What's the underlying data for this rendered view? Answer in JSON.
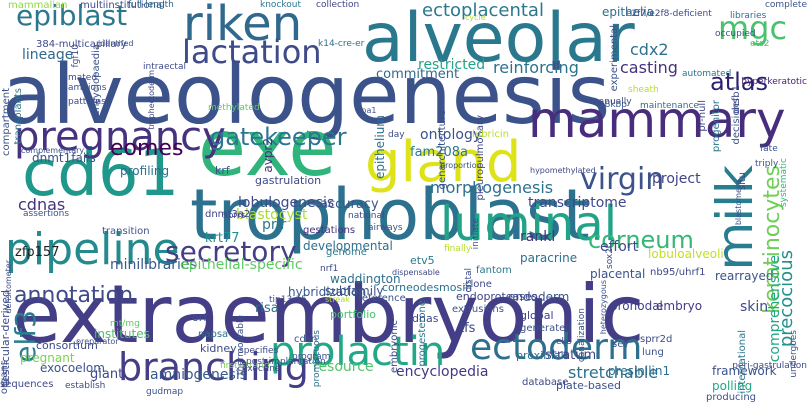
{
  "words": [
    {
      "text": "alveologenesis",
      "color": "#3b528b"
    },
    {
      "text": "extraembryonic",
      "color": "#433e85"
    },
    {
      "text": "trophoblast",
      "color": "#2c718e"
    },
    {
      "text": "exe",
      "color": "#2fb47c"
    },
    {
      "text": "alveolar",
      "color": "#2a788e"
    },
    {
      "text": "mammary",
      "color": "#472d7b"
    },
    {
      "text": "cd61",
      "color": "#1f988b"
    },
    {
      "text": "gland",
      "color": "#dde318"
    },
    {
      "text": "riken",
      "color": "#31688e"
    },
    {
      "text": "pipeline",
      "color": "#238a8d"
    },
    {
      "text": "luminal",
      "color": "#20a386"
    },
    {
      "text": "milk",
      "color": "#287d8e"
    },
    {
      "text": "pregnancy",
      "color": "#46327e"
    },
    {
      "text": "branching",
      "color": "#433e85"
    },
    {
      "text": "prolactin",
      "color": "#22a884"
    },
    {
      "text": "ectoderm",
      "color": "#2d708e"
    },
    {
      "text": "lactation",
      "color": "#3e4a89"
    },
    {
      "text": "epiblast",
      "color": "#2a788e"
    },
    {
      "text": "mgc",
      "color": "#4ac16d"
    },
    {
      "text": "virgin",
      "color": "#3b528b"
    },
    {
      "text": "secretory",
      "color": "#433e85"
    },
    {
      "text": "gatekeeper",
      "color": "#2a768e"
    },
    {
      "text": "keratinocytes",
      "color": "#70cf57"
    },
    {
      "text": "corneum",
      "color": "#35b779"
    },
    {
      "text": "annotation",
      "color": "#3e4a89"
    },
    {
      "text": "elf3",
      "color": "#287d8e"
    },
    {
      "text": "eomes",
      "color": "#440154"
    },
    {
      "text": "atlas",
      "color": "#2d1e70"
    },
    {
      "text": "precocious",
      "color": "#21918c"
    },
    {
      "text": "ectoplacental",
      "color": "#2a788e"
    },
    {
      "text": "casting",
      "color": "#46327e"
    },
    {
      "text": "lineage",
      "color": "#31688e"
    },
    {
      "text": "reinforcing",
      "color": "#2c728e"
    },
    {
      "text": "restricted",
      "color": "#20a386"
    },
    {
      "text": "commitment",
      "color": "#31688e"
    },
    {
      "text": "morphogenesis",
      "color": "#2c728e"
    },
    {
      "text": "project",
      "color": "#404387"
    },
    {
      "text": "transcriptome",
      "color": "#3f4889"
    },
    {
      "text": "epithelium",
      "color": "#2d708e"
    },
    {
      "text": "epithelia",
      "color": "#2e6e8e"
    },
    {
      "text": "cdx2",
      "color": "#2c728e"
    },
    {
      "text": "ontology",
      "color": "#3b528b"
    },
    {
      "text": "fam208a",
      "color": "#2a788e"
    },
    {
      "text": "cdnas",
      "color": "#46327e"
    },
    {
      "text": "lobulogenesis",
      "color": "#3e4a89"
    },
    {
      "text": "accuracy",
      "color": "#39558c"
    },
    {
      "text": "effort",
      "color": "#3f4889"
    },
    {
      "text": "rankl",
      "color": "#46327e"
    },
    {
      "text": "blastocyst",
      "color": "#a8db34"
    },
    {
      "text": "krt77",
      "color": "#21918c"
    },
    {
      "text": "minilibraries",
      "color": "#38588c"
    },
    {
      "text": "epithelial-specific",
      "color": "#5ec962"
    },
    {
      "text": "zfp157",
      "color": "#1f1f1f"
    },
    {
      "text": "prlr",
      "color": "#2a788e"
    },
    {
      "text": "dnmt1fails",
      "color": "#3b528b"
    },
    {
      "text": "profiling",
      "color": "#2e6e8e"
    },
    {
      "text": "rearrayed",
      "color": "#3b528b"
    },
    {
      "text": "pronodal",
      "color": "#404387"
    },
    {
      "text": "comprehensive",
      "color": "#22a785"
    },
    {
      "text": "skin",
      "color": "#3e4989"
    },
    {
      "text": "resource",
      "color": "#52c569"
    },
    {
      "text": "encyclopedia",
      "color": "#443983"
    },
    {
      "text": "stretchable",
      "color": "#2c718e"
    },
    {
      "text": "amniogenesis",
      "color": "#38598c"
    },
    {
      "text": "giant",
      "color": "#3e4a89"
    },
    {
      "text": "risa",
      "color": "#2e6e8e"
    },
    {
      "text": "subfamily",
      "color": "#3b528b"
    },
    {
      "text": "endoderm",
      "color": "#3b528b"
    },
    {
      "text": "stratum",
      "color": "#414487"
    },
    {
      "text": "tfs",
      "color": "#3f4788"
    },
    {
      "text": "presinilin1",
      "color": "#2e6e8e"
    },
    {
      "text": "exocoelom",
      "color": "#3b528b"
    },
    {
      "text": "384-multicapillary",
      "color": "#3e4a89"
    },
    {
      "text": "mammalian",
      "color": "#8fd744"
    },
    {
      "text": "multiinstitutional",
      "color": "#3e4a89"
    },
    {
      "text": "full-length",
      "color": "#31688e"
    },
    {
      "text": "knockout",
      "color": "#2a788e"
    },
    {
      "text": "collection",
      "color": "#404387"
    },
    {
      "text": "complete",
      "color": "#3b528b"
    },
    {
      "text": "libraries",
      "color": "#2d708e"
    },
    {
      "text": "occupied",
      "color": "#3b528b"
    },
    {
      "text": "automated",
      "color": "#2a788e"
    },
    {
      "text": "1.8kbp",
      "color": "#38588c"
    },
    {
      "text": "maintenance",
      "color": "#2d708e"
    },
    {
      "text": "pr-null",
      "color": "#404387"
    },
    {
      "text": "decisions",
      "color": "#3b528b"
    },
    {
      "text": "progenitor",
      "color": "#2c728e"
    },
    {
      "text": "defb1",
      "color": "#3e4a89"
    },
    {
      "text": "hyperkeratotic",
      "color": "#482173"
    },
    {
      "text": "ets2",
      "color": "#4ac16d"
    },
    {
      "text": "triply",
      "color": "#3b528b"
    },
    {
      "text": "fate",
      "color": "#3b528b"
    },
    {
      "text": "situ",
      "color": "#3e4a89"
    },
    {
      "text": "systematic",
      "color": "#35b779"
    },
    {
      "text": "paracrine",
      "color": "#2d708e"
    },
    {
      "text": "placental",
      "color": "#3b528b"
    },
    {
      "text": "lobuloalveoli",
      "color": "#c2df23"
    },
    {
      "text": "fantom",
      "color": "#2a788e"
    },
    {
      "text": "clone",
      "color": "#3e4a89"
    },
    {
      "text": "extrusions",
      "color": "#3b528b"
    },
    {
      "text": "nb95/uhrf1",
      "color": "#3f4788"
    },
    {
      "text": "embryo",
      "color": "#443983"
    },
    {
      "text": "framework",
      "color": "#3b528b"
    },
    {
      "text": "polling",
      "color": "#22a884"
    },
    {
      "text": "developmental",
      "color": "#2d708e"
    },
    {
      "text": "genome",
      "color": "#2a788e"
    },
    {
      "text": "gestations",
      "color": "#46327e"
    },
    {
      "text": "airways",
      "color": "#3b528b"
    },
    {
      "text": "national",
      "color": "#3e4a89"
    },
    {
      "text": "dnmt3a2",
      "color": "#404387"
    },
    {
      "text": "krf",
      "color": "#3b528b"
    },
    {
      "text": "avpr2",
      "color": "#46327e"
    },
    {
      "text": "gastrulation",
      "color": "#3e4a89"
    },
    {
      "text": "hybridization",
      "color": "#38588c"
    },
    {
      "text": "reference",
      "color": "#3b528b"
    },
    {
      "text": "corneodesmosin",
      "color": "#2d708e"
    },
    {
      "text": "endoproteases",
      "color": "#404387"
    },
    {
      "text": "waddington",
      "color": "#2d708e"
    },
    {
      "text": "portfolio",
      "color": "#4ac16d"
    },
    {
      "text": "dnas",
      "color": "#3e4a89"
    },
    {
      "text": "orf",
      "color": "#3b528b"
    },
    {
      "text": "napsa",
      "color": "#2c728e"
    },
    {
      "text": "kidney",
      "color": "#3e4a89"
    },
    {
      "text": "cdsn",
      "color": "#3b528b"
    },
    {
      "text": "progesterone",
      "color": "#2a788e"
    },
    {
      "text": "generated",
      "color": "#3b528b"
    },
    {
      "text": "global",
      "color": "#404387"
    },
    {
      "text": "proximal",
      "color": "#2d708e"
    },
    {
      "text": "plate-based",
      "color": "#3b528b"
    },
    {
      "text": "sprr2d",
      "color": "#3e4a89"
    },
    {
      "text": "set",
      "color": "#3b528b"
    },
    {
      "text": "database",
      "color": "#3f4788"
    },
    {
      "text": "producing",
      "color": "#3b528b"
    },
    {
      "text": "lung",
      "color": "#3b528b"
    },
    {
      "text": "international",
      "color": "#2a788e"
    },
    {
      "text": "consortium",
      "color": "#3e4a89"
    },
    {
      "text": "institutes",
      "color": "#4ac16d"
    },
    {
      "text": "pregnant",
      "color": "#7ad151"
    },
    {
      "text": "testicular-derived",
      "color": "#3e4a89"
    },
    {
      "text": "organs",
      "color": "#3b528b"
    },
    {
      "text": "sequences",
      "color": "#3e4a89"
    },
    {
      "text": "compartment",
      "color": "#3b528b"
    },
    {
      "text": "transplants",
      "color": "#2d708e"
    },
    {
      "text": "mated",
      "color": "#3e4a89"
    },
    {
      "text": "amnions",
      "color": "#3b528b"
    },
    {
      "text": "patterns",
      "color": "#3e4a89"
    },
    {
      "text": "ife",
      "color": "#3b528b"
    },
    {
      "text": "identifed",
      "color": "#3b528b"
    },
    {
      "text": "intraectal",
      "color": "#3e4a89"
    },
    {
      "text": "methylated",
      "color": "#5ec962"
    },
    {
      "text": "encyclopaedia",
      "color": "#3b528b"
    },
    {
      "text": "trophectoderm",
      "color": "#3e4a89"
    },
    {
      "text": "k14-cre-er",
      "color": "#2d708e"
    },
    {
      "text": "blastomere",
      "color": "#3b528b"
    },
    {
      "text": "nrf1",
      "color": "#3e4a89"
    },
    {
      "text": "transition",
      "color": "#3b528b"
    },
    {
      "text": "sprrs",
      "color": "#3e4a89"
    },
    {
      "text": "assertions",
      "color": "#3b528b"
    },
    {
      "text": "fgf10",
      "color": "#3e4a89"
    },
    {
      "text": "densitometer",
      "color": "#3b528b"
    },
    {
      "text": "promiscuous",
      "color": "#2d708e"
    },
    {
      "text": "first-strand",
      "color": "#7ad151"
    },
    {
      "text": "embryonic",
      "color": "#3e4a89"
    },
    {
      "text": "post-implantation",
      "color": "#3b528b"
    },
    {
      "text": "exocrine",
      "color": "#3e4a89"
    },
    {
      "text": "gudmap",
      "color": "#3b528b"
    },
    {
      "text": "establish",
      "color": "#3e4a89"
    },
    {
      "text": "preparator",
      "color": "#3b528b"
    },
    {
      "text": "mt/mg",
      "color": "#5ec962"
    },
    {
      "text": "tip13-15",
      "color": "#3e4a89"
    },
    {
      "text": "streak",
      "color": "#b5de2b"
    },
    {
      "text": "program",
      "color": "#3b528b"
    },
    {
      "text": "specifies",
      "color": "#3e4a89"
    },
    {
      "text": "complementary",
      "color": "#3b528b"
    },
    {
      "text": "eko",
      "color": "#3e4a89"
    },
    {
      "text": "canalization",
      "color": "#3b528b"
    },
    {
      "text": "e2f7/e2f8-deficient",
      "color": "#3e4a89"
    },
    {
      "text": "experimental",
      "color": "#3b528b"
    },
    {
      "text": "manually",
      "color": "#3e4a89"
    },
    {
      "text": "cycle",
      "color": "#b5de2b"
    },
    {
      "text": "genarchitecture",
      "color": "#3b528b"
    },
    {
      "text": "pleuropulmonary",
      "color": "#3e4a89"
    },
    {
      "text": "lubricin",
      "color": "#b5de2b"
    },
    {
      "text": "cpa1",
      "color": "#3b528b"
    },
    {
      "text": "etv5",
      "color": "#2a788e"
    },
    {
      "text": "day",
      "color": "#3e4a89"
    },
    {
      "text": "proportion",
      "color": "#3b528b"
    },
    {
      "text": "hypomethylated",
      "color": "#3e4a89"
    },
    {
      "text": "sheath",
      "color": "#b5de2b"
    },
    {
      "text": "heterozygous",
      "color": "#3b528b"
    },
    {
      "text": "sox2",
      "color": "#3e4a89"
    },
    {
      "text": "peri-gastrulation",
      "color": "#3e4a89"
    },
    {
      "text": "initiate",
      "color": "#3b528b"
    },
    {
      "text": "distal",
      "color": "#3e4a89"
    },
    {
      "text": "thermostable",
      "color": "#3b528b"
    },
    {
      "text": "finally",
      "color": "#b5de2b"
    },
    {
      "text": "dispensable",
      "color": "#3e4a89"
    },
    {
      "text": "undergoes",
      "color": "#3b528b"
    }
  ]
}
